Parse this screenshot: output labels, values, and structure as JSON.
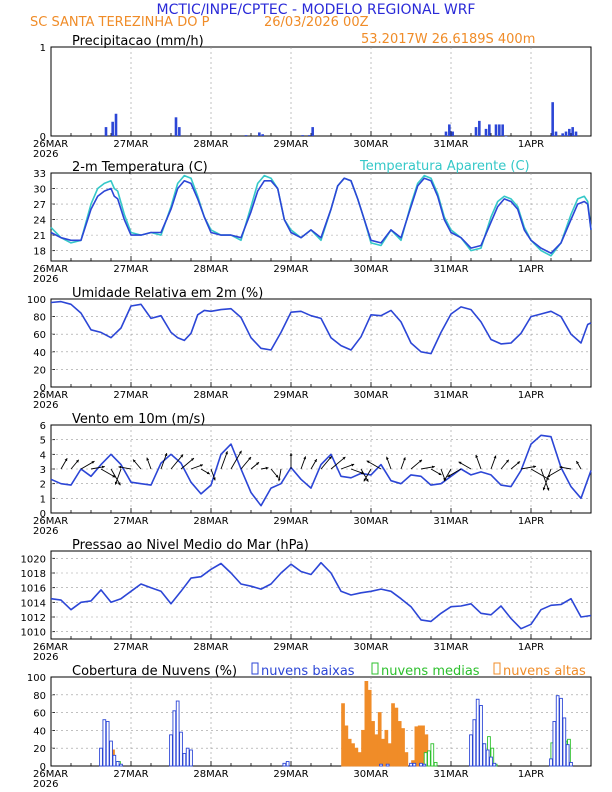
{
  "header": {
    "title": "MCTIC/INPE/CPTEC - MODELO REGIONAL WRF",
    "location": "SC SANTA TEREZINHA DO P",
    "run": "26/03/2026 00Z",
    "coords": "53.2017W 26.6189S 400m"
  },
  "colors": {
    "title": "#2a2ad8",
    "orange": "#f08c28",
    "blue": "#2c46d6",
    "cyan": "#35c8c8",
    "green": "#2dc02d"
  },
  "x_axis": {
    "labels": [
      "26MAR",
      "27MAR",
      "28MAR",
      "29MAR",
      "30MAR",
      "31MAR",
      "1APR"
    ],
    "year": "2026"
  },
  "chart_data": [
    {
      "id": "precip",
      "type": "bar",
      "title": "Precipitacao (mm/h)",
      "ylim": [
        0,
        1
      ],
      "yticks": [
        0,
        1
      ],
      "hours": [
        16.5,
        18.5,
        19.5,
        37.5,
        38.5,
        58.5,
        62.5,
        63.5,
        75.5,
        77.5,
        78.5,
        118.5,
        119.5,
        120.5,
        127.5,
        128.5,
        130.5,
        131.5,
        133.5,
        134.5,
        135.5,
        136.5,
        150.5,
        151.5,
        153.5,
        154.5,
        155.5,
        156.5,
        157.5
      ],
      "values": [
        0.1,
        0.16,
        0.25,
        0.21,
        0.1,
        0.01,
        0.04,
        0.02,
        0.01,
        0.01,
        0.1,
        0.05,
        0.13,
        0.05,
        0.1,
        0.17,
        0.08,
        0.13,
        0.13,
        0.13,
        0.13,
        0.0,
        0.38,
        0.05,
        0.03,
        0.05,
        0.08,
        0.1,
        0.05
      ]
    },
    {
      "id": "temp",
      "type": "line",
      "title": "2-m Temperatura (C)",
      "legend": "Temperatura Aparente (C)",
      "ylim": [
        16,
        33
      ],
      "yticks": [
        18,
        21,
        24,
        27,
        30,
        33
      ],
      "series": [
        {
          "name": "2-m Temperatura (C)",
          "x": [
            0,
            3,
            6,
            9,
            12,
            14,
            16,
            18,
            19,
            20,
            22,
            24,
            27,
            30,
            33,
            36,
            38,
            40,
            42,
            44,
            46,
            48,
            51,
            54,
            57,
            60,
            62,
            64,
            66,
            68,
            70,
            72,
            75,
            78,
            81,
            84,
            86,
            88,
            90,
            92,
            94,
            96,
            99,
            102,
            105,
            108,
            110,
            112,
            114,
            116,
            118,
            120,
            123,
            126,
            129,
            132,
            134,
            136,
            138,
            140,
            142,
            144,
            147,
            150,
            153,
            156,
            158,
            160,
            161,
            162
          ],
          "values": [
            21.5,
            20.5,
            20.0,
            20.0,
            26.0,
            28.5,
            29.5,
            30.0,
            28.5,
            28.0,
            24.0,
            21.0,
            21.0,
            21.5,
            21.5,
            26.0,
            30.0,
            31.5,
            31.0,
            28.0,
            24.5,
            21.5,
            21.0,
            21.0,
            20.5,
            25.5,
            29.5,
            31.5,
            31.5,
            30.0,
            24.0,
            21.5,
            20.5,
            22.0,
            20.5,
            26.0,
            30.5,
            32.0,
            31.5,
            28.0,
            24.0,
            20.0,
            19.5,
            22.0,
            20.5,
            26.5,
            30.5,
            32.0,
            31.5,
            28.5,
            24.0,
            21.5,
            20.5,
            18.5,
            19.0,
            23.5,
            26.5,
            28.0,
            27.5,
            26.0,
            22.0,
            20.0,
            18.5,
            17.5,
            19.5,
            24.0,
            27.0,
            27.5,
            27.0,
            22.0
          ]
        },
        {
          "name": "Temperatura Aparente (C)",
          "x": [
            0,
            3,
            6,
            9,
            12,
            14,
            16,
            18,
            19,
            20,
            22,
            24,
            27,
            30,
            33,
            36,
            38,
            40,
            42,
            44,
            46,
            48,
            51,
            54,
            57,
            60,
            62,
            64,
            66,
            68,
            70,
            72,
            75,
            78,
            81,
            84,
            86,
            88,
            90,
            92,
            94,
            96,
            99,
            102,
            105,
            108,
            110,
            112,
            114,
            116,
            118,
            120,
            123,
            126,
            129,
            132,
            134,
            136,
            138,
            140,
            142,
            144,
            147,
            150,
            153,
            156,
            158,
            160,
            161,
            162
          ],
          "values": [
            22.5,
            20.5,
            19.5,
            20.0,
            27.0,
            30.0,
            31.0,
            31.5,
            30.0,
            29.5,
            25.0,
            21.5,
            21.0,
            21.5,
            21.0,
            26.5,
            31.0,
            32.5,
            32.0,
            28.5,
            24.5,
            22.0,
            21.0,
            21.0,
            20.0,
            26.5,
            31.0,
            32.5,
            32.0,
            30.0,
            24.0,
            22.0,
            20.5,
            22.0,
            20.0,
            26.0,
            30.5,
            32.0,
            31.5,
            28.0,
            24.0,
            19.5,
            19.0,
            22.0,
            20.0,
            27.0,
            31.0,
            32.5,
            32.0,
            29.0,
            24.5,
            22.0,
            20.5,
            18.0,
            18.5,
            24.5,
            27.5,
            28.5,
            28.0,
            26.5,
            22.5,
            20.0,
            18.0,
            17.0,
            19.5,
            25.0,
            28.0,
            28.5,
            27.5,
            22.0
          ]
        }
      ]
    },
    {
      "id": "rh",
      "type": "line",
      "title": "Umidade Relativa em 2m (%)",
      "ylim": [
        0,
        100
      ],
      "yticks": [
        0,
        20,
        40,
        60,
        80,
        100
      ],
      "x": [
        0,
        3,
        6,
        9,
        12,
        15,
        18,
        21,
        24,
        27,
        30,
        33,
        36,
        38,
        40,
        42,
        44,
        46,
        48,
        51,
        54,
        57,
        60,
        63,
        66,
        69,
        72,
        75,
        78,
        81,
        84,
        87,
        90,
        93,
        96,
        99,
        102,
        105,
        108,
        111,
        114,
        117,
        120,
        123,
        126,
        129,
        132,
        135,
        138,
        141,
        144,
        147,
        150,
        153,
        156,
        159,
        161,
        162
      ],
      "values": [
        96,
        97,
        94,
        84,
        65,
        62,
        56,
        67,
        92,
        94,
        78,
        81,
        62,
        56,
        53,
        61,
        82,
        87,
        86,
        88,
        89,
        79,
        56,
        44,
        42,
        62,
        85,
        86,
        81,
        78,
        56,
        47,
        42,
        57,
        82,
        81,
        87,
        74,
        50,
        40,
        38,
        62,
        83,
        91,
        88,
        74,
        54,
        49,
        50,
        61,
        80,
        83,
        86,
        80,
        60,
        50,
        71,
        73
      ]
    },
    {
      "id": "wind",
      "type": "line",
      "title": "Vento em 10m (m/s)",
      "ylim": [
        0,
        6
      ],
      "yticks": [
        0,
        1,
        2,
        3,
        4,
        5,
        6
      ],
      "x": [
        0,
        3,
        6,
        9,
        12,
        15,
        18,
        21,
        24,
        27,
        30,
        33,
        36,
        39,
        42,
        45,
        48,
        51,
        54,
        57,
        60,
        63,
        66,
        69,
        72,
        75,
        78,
        81,
        84,
        87,
        90,
        93,
        96,
        99,
        102,
        105,
        108,
        111,
        114,
        117,
        120,
        123,
        126,
        129,
        132,
        135,
        138,
        141,
        144,
        147,
        150,
        153,
        156,
        159,
        162
      ],
      "values": [
        2.3,
        2.0,
        1.9,
        3.0,
        2.5,
        3.3,
        4.0,
        3.3,
        2.1,
        2.0,
        1.9,
        3.4,
        4.0,
        3.4,
        2.1,
        1.3,
        1.9,
        4.0,
        4.7,
        3.0,
        1.4,
        0.5,
        1.7,
        2.0,
        3.1,
        2.3,
        1.7,
        3.3,
        4.0,
        2.5,
        2.4,
        2.7,
        2.6,
        3.3,
        2.2,
        2.0,
        2.6,
        2.5,
        1.9,
        2.0,
        2.5,
        3.0,
        2.6,
        2.8,
        2.6,
        1.9,
        1.8,
        2.9,
        4.7,
        5.3,
        5.2,
        3.1,
        1.8,
        1.0,
        2.9
      ],
      "dir_deg": [
        200,
        210,
        220,
        240,
        260,
        300,
        330,
        20,
        100,
        140,
        160,
        200,
        220,
        230,
        250,
        300,
        340,
        200,
        210,
        220,
        230,
        260,
        320,
        10,
        180,
        200,
        210,
        220,
        230,
        250,
        290,
        330,
        30,
        120,
        160,
        200,
        230,
        260,
        300,
        340,
        30,
        60,
        120,
        160,
        200,
        220,
        230,
        260,
        300,
        340,
        20,
        60,
        100,
        150,
        190
      ]
    },
    {
      "id": "pres",
      "type": "line",
      "title": "Pressao ao Nivel Medio do Mar (hPa)",
      "ylim": [
        1009,
        1021
      ],
      "yticks": [
        1010,
        1012,
        1014,
        1016,
        1018,
        1020
      ],
      "x": [
        0,
        3,
        6,
        9,
        12,
        15,
        18,
        21,
        24,
        27,
        30,
        33,
        36,
        39,
        42,
        45,
        48,
        51,
        54,
        57,
        60,
        63,
        66,
        69,
        72,
        75,
        78,
        81,
        84,
        87,
        90,
        93,
        96,
        99,
        102,
        105,
        108,
        111,
        114,
        117,
        120,
        123,
        126,
        129,
        132,
        135,
        138,
        141,
        144,
        147,
        150,
        153,
        156,
        159,
        162
      ],
      "values": [
        1014.5,
        1014.3,
        1013.0,
        1014.0,
        1014.2,
        1015.7,
        1014.0,
        1014.5,
        1015.5,
        1016.5,
        1016.0,
        1015.5,
        1013.8,
        1015.5,
        1017.3,
        1017.5,
        1018.5,
        1019.3,
        1018.0,
        1016.5,
        1016.2,
        1015.8,
        1016.5,
        1018.0,
        1019.2,
        1018.2,
        1017.8,
        1019.4,
        1018.0,
        1015.5,
        1015.0,
        1015.3,
        1015.5,
        1015.8,
        1015.5,
        1014.5,
        1013.4,
        1011.6,
        1011.4,
        1012.5,
        1013.4,
        1013.5,
        1013.8,
        1012.5,
        1012.3,
        1013.5,
        1011.8,
        1010.4,
        1011.0,
        1013.0,
        1013.6,
        1013.7,
        1014.5,
        1012.0,
        1012.2
      ]
    },
    {
      "id": "clouds",
      "type": "bar",
      "title": "Cobertura de Nuvens (%)",
      "ylim": [
        0,
        100
      ],
      "yticks": [
        0,
        20,
        40,
        60,
        80,
        100
      ],
      "legend": [
        "nuvens baixas",
        "nuvens medias",
        "nuvens altas"
      ],
      "series": [
        {
          "name": "nuvens baixas",
          "hours": [
            15,
            16,
            17,
            18,
            19,
            20,
            21,
            36,
            37,
            38,
            39,
            40,
            41,
            42,
            70,
            71,
            99,
            101,
            108,
            109,
            111,
            112,
            126,
            127,
            128,
            129,
            130,
            131,
            132,
            133,
            150,
            151,
            152,
            153,
            154,
            155,
            156
          ],
          "values": [
            20,
            52,
            50,
            28,
            12,
            5,
            2,
            35,
            62,
            73,
            38,
            14,
            20,
            18,
            3,
            5,
            2,
            2,
            3,
            3,
            3,
            2,
            35,
            52,
            75,
            68,
            25,
            18,
            10,
            3,
            8,
            50,
            79,
            76,
            54,
            24,
            4
          ]
        },
        {
          "name": "nuvens medias",
          "hours": [
            17,
            18,
            20,
            40,
            41,
            112,
            113,
            114,
            115,
            129,
            130,
            131,
            132,
            133,
            150,
            151,
            152,
            153,
            154,
            155
          ],
          "values": [
            14,
            8,
            5,
            10,
            3,
            15,
            17,
            25,
            4,
            25,
            15,
            33,
            20,
            2,
            26,
            10,
            8,
            22,
            28,
            30
          ]
        },
        {
          "name": "nuvens altas",
          "hours": [
            17,
            18,
            19,
            20,
            37,
            39,
            40,
            41,
            88,
            89,
            90,
            91,
            92,
            93,
            94,
            95,
            96,
            97,
            98,
            99,
            100,
            101,
            102,
            103,
            104,
            105,
            106,
            107,
            109,
            110,
            111,
            112,
            113,
            114
          ],
          "values": [
            10,
            12,
            18,
            3,
            5,
            5,
            10,
            5,
            70,
            45,
            30,
            25,
            20,
            15,
            40,
            95,
            85,
            50,
            35,
            60,
            30,
            40,
            25,
            70,
            65,
            50,
            42,
            15,
            6,
            44,
            45,
            45,
            35,
            8
          ]
        }
      ]
    }
  ]
}
